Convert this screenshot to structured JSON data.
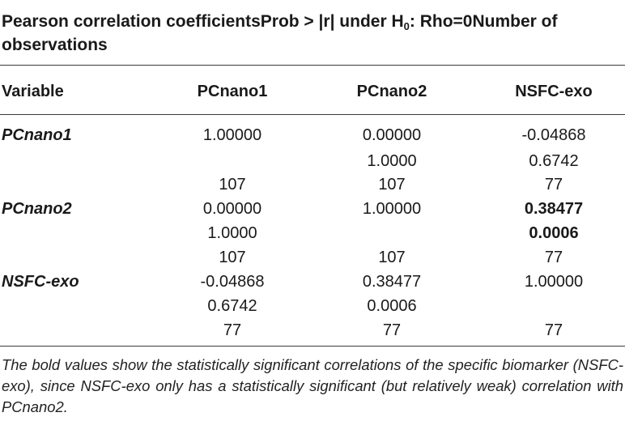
{
  "title": {
    "part1": "Pearson correlation coefficientsProb > |r| under H",
    "sub": "0",
    "part2": ": Rho=0Number of observations"
  },
  "header": {
    "variable": "Variable",
    "col1": "PCnano1",
    "col2": "PCnano2",
    "col3": "NSFC-exo"
  },
  "rows": [
    {
      "label": "PCnano1",
      "r": [
        "1.00000",
        "0.00000",
        "-0.04868"
      ],
      "p": [
        "",
        "1.0000",
        "0.6742"
      ],
      "n": [
        "107",
        "107",
        "77"
      ]
    },
    {
      "label": "PCnano2",
      "r": [
        "0.00000",
        "1.00000",
        "0.38477"
      ],
      "p": [
        "1.0000",
        "",
        "0.0006"
      ],
      "n": [
        "107",
        "107",
        "77"
      ]
    },
    {
      "label": "NSFC-exo",
      "r": [
        "-0.04868",
        "0.38477",
        "1.00000"
      ],
      "p": [
        "0.6742",
        "0.0006",
        ""
      ],
      "n": [
        "77",
        "77",
        "77"
      ]
    }
  ],
  "footnote": "The bold values show the statistically significant correlations of the specific biomarker (NSFC-exo), since NSFC-exo only has a statistically significant (but relatively weak) correlation with PCnano2."
}
